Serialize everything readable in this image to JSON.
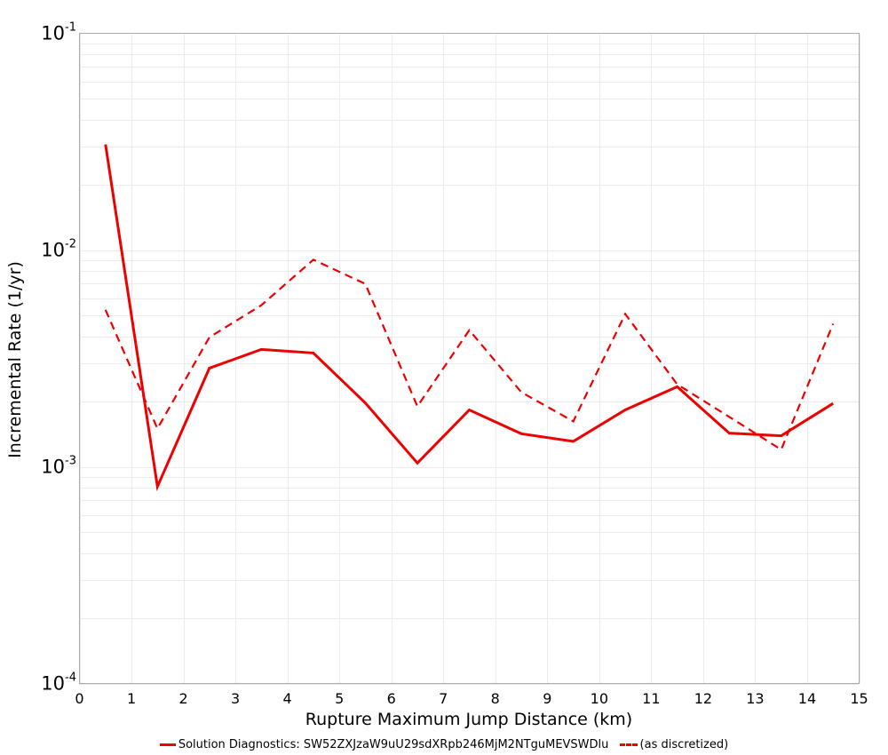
{
  "chart_data": {
    "type": "line",
    "title": "",
    "xlabel": "Rupture Maximum Jump Distance (km)",
    "ylabel": "Incremental Rate (1/yr)",
    "xlim": [
      0,
      15
    ],
    "ylim": [
      0.0001,
      0.1
    ],
    "yscale": "log",
    "grid": true,
    "legend_position": "bottom",
    "x_ticks": [
      0,
      1,
      2,
      3,
      4,
      5,
      6,
      7,
      8,
      9,
      10,
      11,
      12,
      13,
      14,
      15
    ],
    "y_ticks": [
      {
        "value": 0.1,
        "base": "10",
        "exp": "-1"
      },
      {
        "value": 0.01,
        "base": "10",
        "exp": "-2"
      },
      {
        "value": 0.001,
        "base": "10",
        "exp": "-3"
      },
      {
        "value": 0.0001,
        "base": "10",
        "exp": "-4"
      }
    ],
    "x": [
      0.5,
      1.5,
      2.5,
      3.5,
      4.5,
      5.5,
      6.5,
      7.5,
      8.5,
      9.5,
      10.5,
      11.5,
      12.5,
      13.5,
      14.5
    ],
    "series": [
      {
        "name": "Solution Diagnostics: SW52ZXJzaW9uU29sdXRpb246MjM2NTguMEVSWDlu",
        "style": "solid",
        "color": "#ee0000",
        "values": [
          0.0307,
          0.00081,
          0.00285,
          0.00348,
          0.00335,
          0.00197,
          0.00104,
          0.00183,
          0.00142,
          0.00131,
          0.00183,
          0.00234,
          0.00143,
          0.00139,
          0.00196
        ]
      },
      {
        "name": "(as discretized)",
        "style": "dashed",
        "color": "#ee0000",
        "values": [
          0.0053,
          0.0015,
          0.00396,
          0.00557,
          0.00902,
          0.00698,
          0.0019,
          0.00427,
          0.00221,
          0.00162,
          0.00507,
          0.0024,
          0.0017,
          0.0012,
          0.00457
        ]
      }
    ]
  },
  "axes": {
    "xlabel": "Rupture Maximum Jump Distance (km)",
    "ylabel": "Incremental Rate (1/yr)"
  },
  "legend": {
    "items": [
      {
        "label": "Solution Diagnostics: SW52ZXJzaW9uU29sdXRpb246MjM2NTguMEVSWDlu",
        "style": "solid"
      },
      {
        "label": "(as discretized)",
        "style": "dashed"
      }
    ]
  },
  "colors": {
    "series": "#ee0000",
    "grid": "#ebebeb",
    "axis": "#aaaaaa"
  }
}
